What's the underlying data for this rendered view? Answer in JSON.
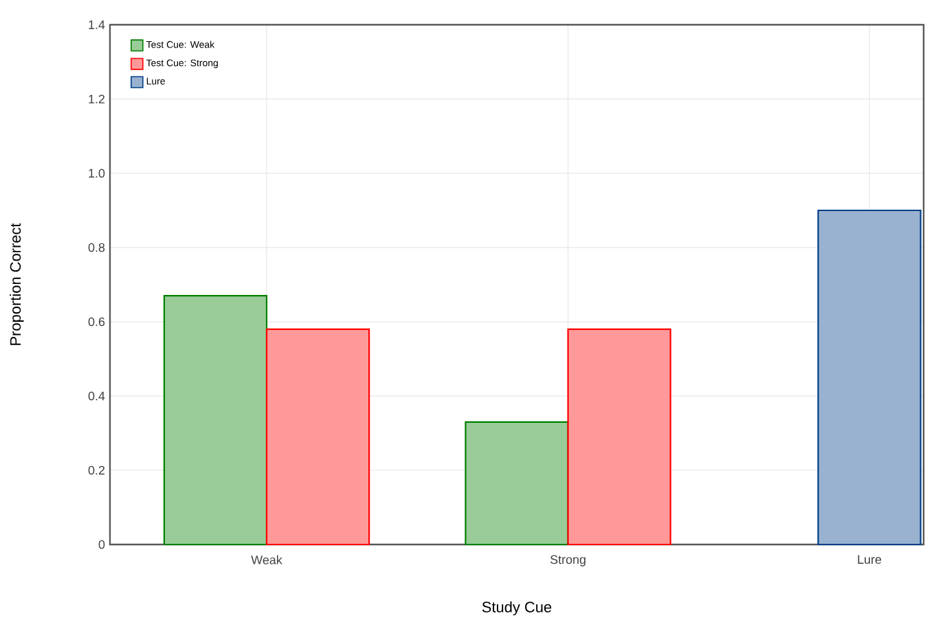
{
  "chart_data": {
    "type": "bar",
    "xlabel": "Study Cue",
    "ylabel": "Proportion Correct",
    "categories": [
      "Weak",
      "Strong",
      "Lure"
    ],
    "series": [
      {
        "name": "Test Cue: Weak",
        "color": "#008000",
        "values": [
          0.67,
          0.33,
          null
        ]
      },
      {
        "name": "Test Cue: Strong",
        "color": "#ff0000",
        "values": [
          0.58,
          0.58,
          null
        ]
      },
      {
        "name": "Lure",
        "color": "#003f87",
        "values": [
          null,
          null,
          0.9
        ]
      }
    ],
    "ylim": [
      0,
      1.4
    ],
    "yticks": [
      0,
      {
        "value": 0.2,
        "label": "0.2"
      },
      {
        "value": 0.4,
        "label": "0.4"
      },
      {
        "value": 0.6,
        "label": "0.6"
      },
      {
        "value": 0.8,
        "label": "0.8"
      },
      {
        "value": 1.0,
        "label": "1.0"
      },
      {
        "value": 1.2,
        "label": "1.2"
      },
      {
        "value": 1.4,
        "label": "1.4"
      }
    ],
    "grid": true,
    "legend": "top left"
  }
}
